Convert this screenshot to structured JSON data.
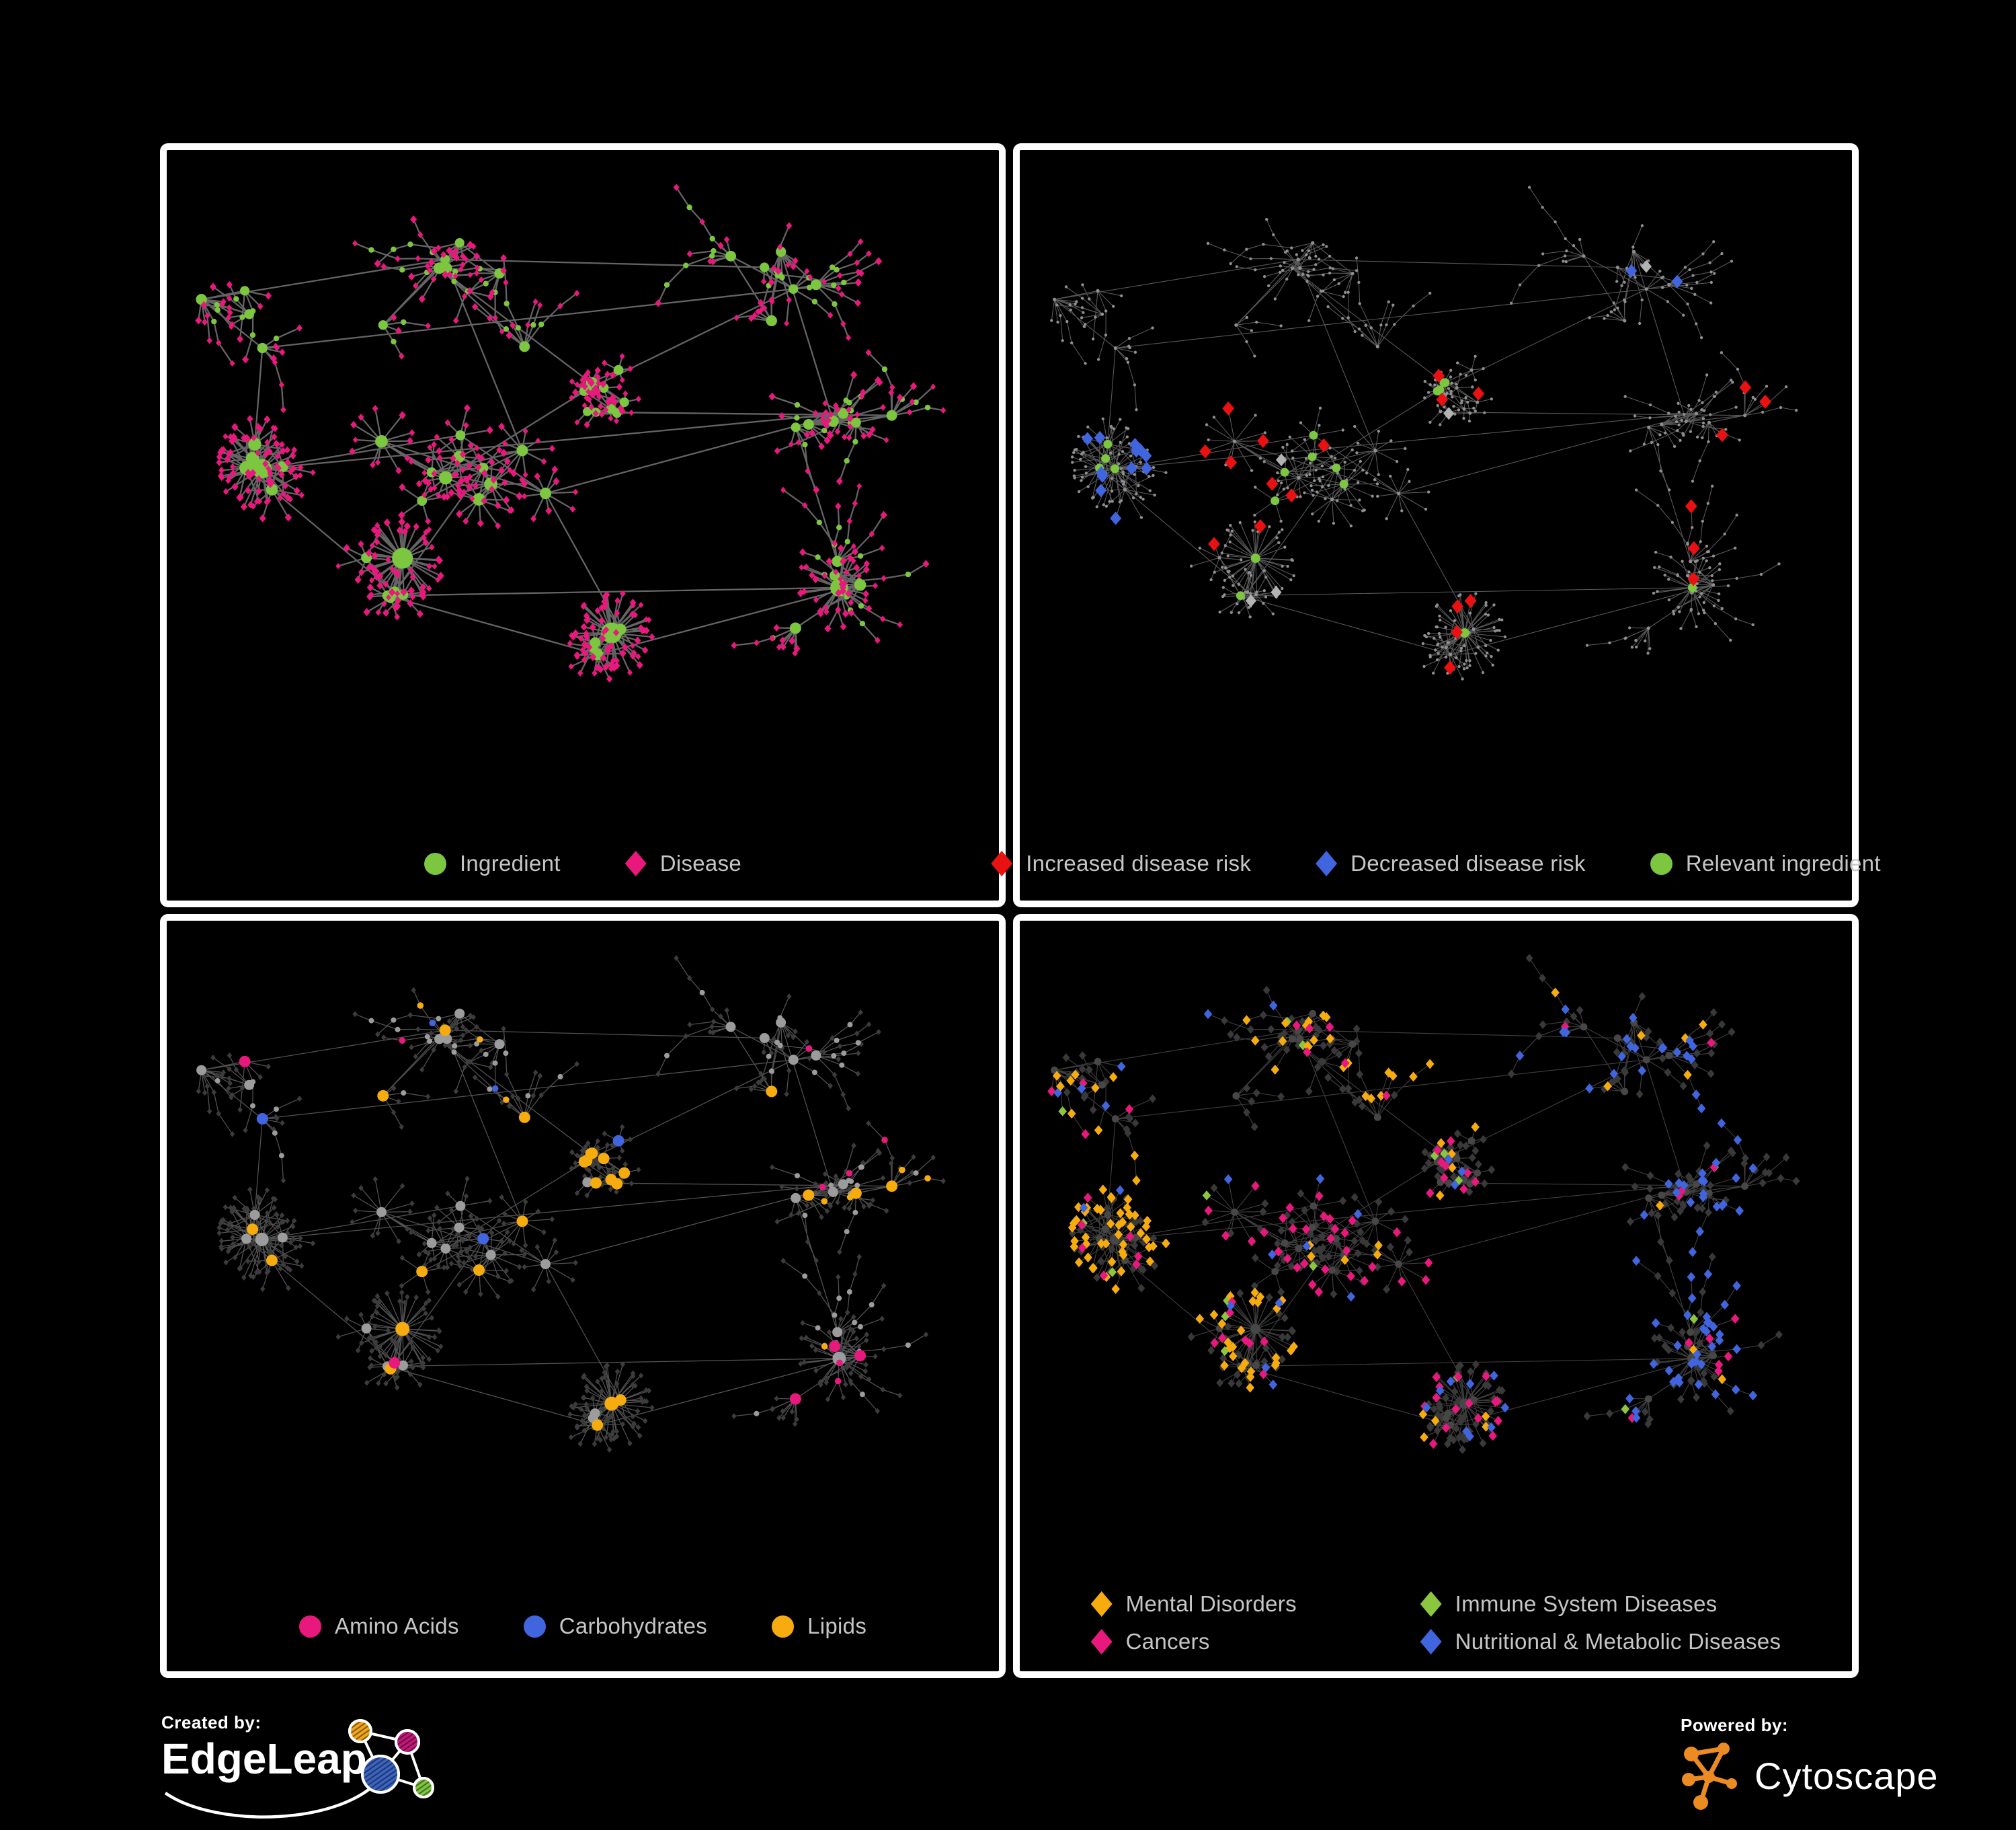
{
  "theme": {
    "background": "#000000",
    "panel_border": "#FFFFFF",
    "legend_text": "#C6C6C6"
  },
  "colors": {
    "green": "#7DC63F",
    "lime": "#8CC63E",
    "pink": "#E8187C",
    "red": "#E91111",
    "blue": "#4065DF",
    "silver": "#B3B3B3",
    "orange": "#F6AC0E",
    "grayNode": "#9C9C9C",
    "dot": "#8F8F8F",
    "darkDiamond": "#3C3C3C",
    "dark2": "#393939",
    "darkCircle": "#474747"
  },
  "panels": [
    {
      "id": "ingredient-disease",
      "edge": {
        "color": "#6C6C6C",
        "width": 2.3,
        "opacity": 0.92
      },
      "legend": [
        {
          "label": "Ingredient",
          "shape": "circle",
          "color": "#7DC63F"
        },
        {
          "label": "Disease",
          "shape": "diamond",
          "color": "#E8187C"
        }
      ]
    },
    {
      "id": "disease-risk",
      "edge": {
        "color": "#6E6E6E",
        "width": 1.1,
        "opacity": 0.8
      },
      "legend": [
        {
          "label": "Increased disease risk",
          "shape": "diamond",
          "color": "#E91111"
        },
        {
          "label": "Decreased disease risk",
          "shape": "diamond",
          "color": "#4065DF"
        },
        {
          "label": "Relevant ingredient",
          "shape": "circle",
          "color": "#7DC63F"
        }
      ]
    },
    {
      "id": "nutrient-classes",
      "edge": {
        "color": "#A2A2A2",
        "width": 1.3,
        "opacity": 0.5
      },
      "legend": [
        {
          "label": "Amino Acids",
          "shape": "circle",
          "color": "#E8187C"
        },
        {
          "label": "Carbohydrates",
          "shape": "circle",
          "color": "#4065DF"
        },
        {
          "label": "Lipids",
          "shape": "circle",
          "color": "#F6AC0E"
        }
      ]
    },
    {
      "id": "disease-classes",
      "edge": {
        "color": "#A8A8A8",
        "width": 1.1,
        "opacity": 0.38
      },
      "legend": [
        {
          "label": "Mental Disorders",
          "shape": "diamond",
          "color": "#F6AC0E"
        },
        {
          "label": "Immune System Diseases",
          "shape": "diamond",
          "color": "#8CC63E"
        },
        {
          "label": "Cancers",
          "shape": "diamond",
          "color": "#E8187C"
        },
        {
          "label": "Nutritional & Metabolic Diseases",
          "shape": "diamond",
          "color": "#4065DF"
        }
      ]
    }
  ],
  "footer": {
    "created_by_label": "Created by:",
    "created_by_name": "EdgeLeap",
    "powered_by_label": "Powered by:",
    "powered_by_name": "Cytoscape",
    "cytoscape_orange": "#EC8B22",
    "edgeleap_node_colors": {
      "orange": "#F2A71B",
      "magenta": "#C2187A",
      "blue": "#3B63C1",
      "green": "#7DC63F"
    }
  }
}
